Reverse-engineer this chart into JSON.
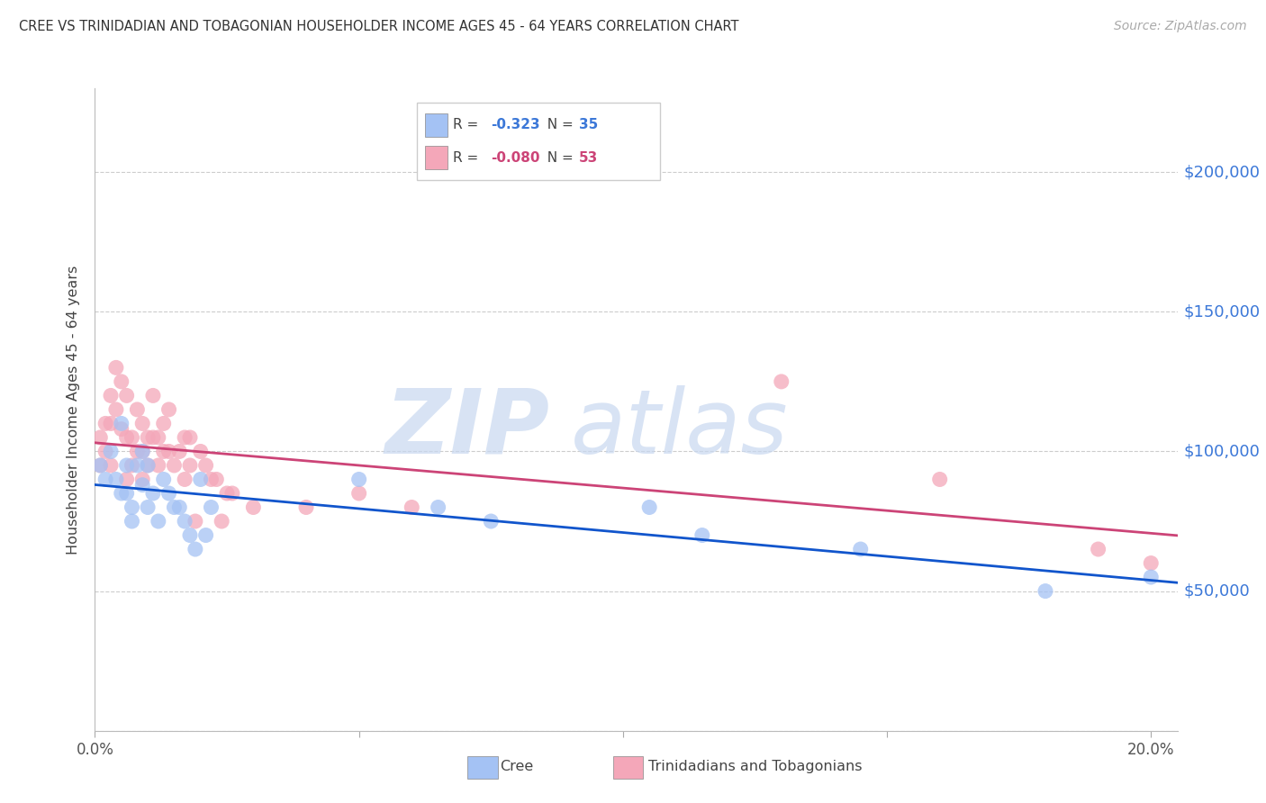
{
  "title": "CREE VS TRINIDADIAN AND TOBAGONIAN HOUSEHOLDER INCOME AGES 45 - 64 YEARS CORRELATION CHART",
  "source": "Source: ZipAtlas.com",
  "ylabel": "Householder Income Ages 45 - 64 years",
  "watermark_top": "ZIP",
  "watermark_bot": "atlas",
  "cree_color": "#a4c2f4",
  "tt_color": "#f4a7b9",
  "cree_line_color": "#1155cc",
  "tt_line_color": "#cc4477",
  "xmin": 0.0,
  "xmax": 0.205,
  "ymin": 0,
  "ymax": 230000,
  "cree_R": "-0.323",
  "cree_N": "35",
  "tt_R": "-0.080",
  "tt_N": "53",
  "cree_x": [
    0.001,
    0.002,
    0.003,
    0.004,
    0.005,
    0.005,
    0.006,
    0.006,
    0.007,
    0.007,
    0.008,
    0.009,
    0.009,
    0.01,
    0.01,
    0.011,
    0.012,
    0.013,
    0.014,
    0.015,
    0.016,
    0.017,
    0.018,
    0.019,
    0.02,
    0.021,
    0.022,
    0.05,
    0.065,
    0.075,
    0.105,
    0.115,
    0.145,
    0.18,
    0.2
  ],
  "cree_y": [
    95000,
    90000,
    100000,
    90000,
    110000,
    85000,
    95000,
    85000,
    80000,
    75000,
    95000,
    100000,
    88000,
    95000,
    80000,
    85000,
    75000,
    90000,
    85000,
    80000,
    80000,
    75000,
    70000,
    65000,
    90000,
    70000,
    80000,
    90000,
    80000,
    75000,
    80000,
    70000,
    65000,
    50000,
    55000
  ],
  "tt_x": [
    0.001,
    0.001,
    0.002,
    0.002,
    0.003,
    0.003,
    0.003,
    0.004,
    0.004,
    0.005,
    0.005,
    0.006,
    0.006,
    0.006,
    0.007,
    0.007,
    0.008,
    0.008,
    0.009,
    0.009,
    0.009,
    0.01,
    0.01,
    0.011,
    0.011,
    0.012,
    0.012,
    0.013,
    0.013,
    0.014,
    0.014,
    0.015,
    0.016,
    0.017,
    0.017,
    0.018,
    0.018,
    0.019,
    0.02,
    0.021,
    0.022,
    0.023,
    0.024,
    0.025,
    0.026,
    0.03,
    0.04,
    0.05,
    0.06,
    0.13,
    0.16,
    0.19,
    0.2
  ],
  "tt_y": [
    105000,
    95000,
    110000,
    100000,
    120000,
    110000,
    95000,
    130000,
    115000,
    125000,
    108000,
    120000,
    105000,
    90000,
    105000,
    95000,
    115000,
    100000,
    110000,
    100000,
    90000,
    105000,
    95000,
    120000,
    105000,
    105000,
    95000,
    110000,
    100000,
    115000,
    100000,
    95000,
    100000,
    105000,
    90000,
    105000,
    95000,
    75000,
    100000,
    95000,
    90000,
    90000,
    75000,
    85000,
    85000,
    80000,
    80000,
    85000,
    80000,
    125000,
    90000,
    65000,
    60000
  ]
}
